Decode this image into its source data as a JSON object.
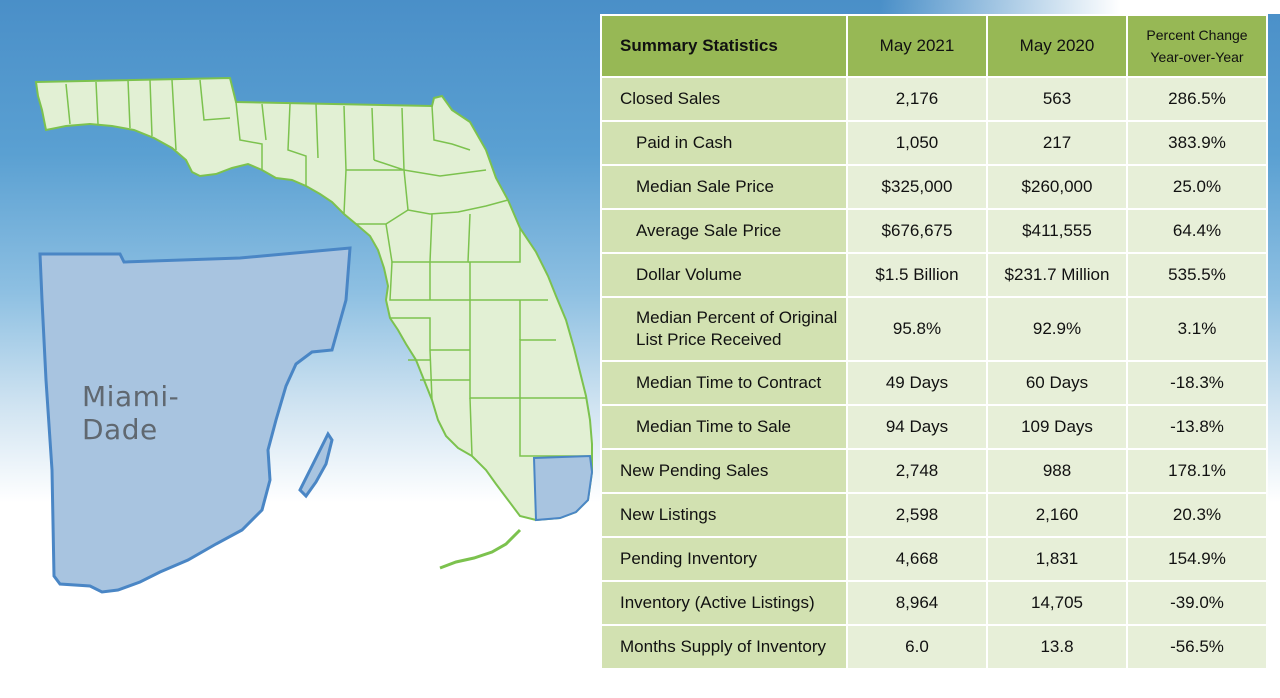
{
  "map": {
    "county_label": "Miami-Dade",
    "colors": {
      "state_fill": "#e2f0d4",
      "state_stroke": "#7cc24e",
      "highlight_fill": "#a8c4e0",
      "highlight_stroke": "#4a86c5"
    }
  },
  "table": {
    "header": {
      "title": "Summary Statistics",
      "col1": "May 2021",
      "col2": "May 2020",
      "col3_line1": "Percent Change",
      "col3_line2": "Year-over-Year"
    },
    "rows": [
      {
        "label": "Closed Sales",
        "indent": false,
        "may2021": "2,176",
        "may2020": "563",
        "change": "286.5%"
      },
      {
        "label": "Paid in Cash",
        "indent": true,
        "may2021": "1,050",
        "may2020": "217",
        "change": "383.9%"
      },
      {
        "label": "Median Sale Price",
        "indent": true,
        "may2021": "$325,000",
        "may2020": "$260,000",
        "change": "25.0%"
      },
      {
        "label": "Average Sale Price",
        "indent": true,
        "may2021": "$676,675",
        "may2020": "$411,555",
        "change": "64.4%"
      },
      {
        "label": "Dollar Volume",
        "indent": true,
        "may2021": "$1.5 Billion",
        "may2020": "$231.7 Million",
        "change": "535.5%"
      },
      {
        "label_line1": "Median Percent of Original",
        "label_line2": "List Price Received",
        "indent": true,
        "may2021": "95.8%",
        "may2020": "92.9%",
        "change": "3.1%"
      },
      {
        "label": "Median Time to Contract",
        "indent": true,
        "may2021": "49 Days",
        "may2020": "60 Days",
        "change": "-18.3%"
      },
      {
        "label": "Median Time to Sale",
        "indent": true,
        "may2021": "94 Days",
        "may2020": "109 Days",
        "change": "-13.8%"
      },
      {
        "label": "New Pending Sales",
        "indent": false,
        "may2021": "2,748",
        "may2020": "988",
        "change": "178.1%"
      },
      {
        "label": "New Listings",
        "indent": false,
        "may2021": "2,598",
        "may2020": "2,160",
        "change": "20.3%"
      },
      {
        "label": "Pending Inventory",
        "indent": false,
        "may2021": "4,668",
        "may2020": "1,831",
        "change": "154.9%"
      },
      {
        "label": "Inventory (Active Listings)",
        "indent": false,
        "may2021": "8,964",
        "may2020": "14,705",
        "change": "-39.0%"
      },
      {
        "label": "Months Supply of Inventory",
        "indent": false,
        "may2021": "6.0",
        "may2020": "13.8",
        "change": "-56.5%"
      }
    ]
  }
}
